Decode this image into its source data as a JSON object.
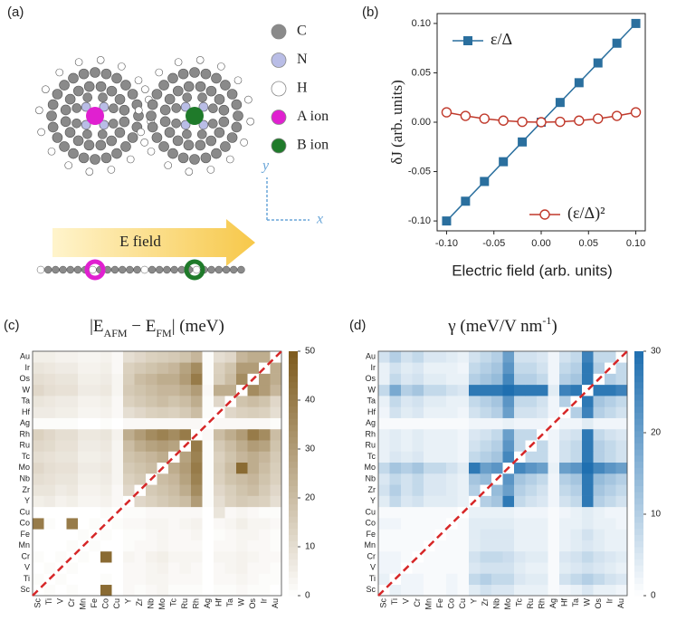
{
  "panel_a": {
    "label": "(a)",
    "legend": [
      "C",
      "N",
      "H",
      "A ion",
      "B ion"
    ],
    "field_label": "E field",
    "axis_y": "y",
    "axis_x": "x"
  },
  "chart_data": [
    {
      "type": "line",
      "label": "(b)",
      "x_label": "Electric field (arb. units)",
      "y_label": "δJ (arb. units)",
      "x": [
        -0.1,
        -0.08,
        -0.06,
        -0.04,
        -0.02,
        0,
        0.02,
        0.04,
        0.06,
        0.08,
        0.1
      ],
      "series": [
        {
          "name": "ε/Δ",
          "color": "#2a6f9e",
          "values": [
            -0.1,
            -0.08,
            -0.06,
            -0.04,
            -0.02,
            0,
            0.02,
            0.04,
            0.06,
            0.08,
            0.1
          ]
        },
        {
          "name": "(ε/Δ)²",
          "color": "#c0392b",
          "values": [
            0.01,
            0.0064,
            0.0036,
            0.0016,
            0.0004,
            0,
            0.0004,
            0.0016,
            0.0036,
            0.0064,
            0.01
          ]
        }
      ],
      "xlim": [
        -0.11,
        0.11
      ],
      "ylim": [
        -0.11,
        0.11
      ],
      "xticks": [
        {
          "value": -0.1,
          "label": "-0.10"
        },
        {
          "value": -0.05,
          "label": "-0.05"
        },
        {
          "value": 0,
          "label": "0.00"
        },
        {
          "value": 0.05,
          "label": "0.05"
        },
        {
          "value": 0.1,
          "label": "0.10"
        }
      ],
      "yticks": [
        {
          "value": -0.1,
          "label": "-0.10"
        },
        {
          "value": -0.05,
          "label": "-0.05"
        },
        {
          "value": 0,
          "label": "0.00"
        },
        {
          "value": 0.05,
          "label": "0.05"
        },
        {
          "value": 0.1,
          "label": "0.10"
        }
      ]
    },
    {
      "type": "heatmap",
      "label": "(c)",
      "title_parts": [
        "|E",
        "AFM",
        " − E",
        "FM",
        "|   (meV)"
      ],
      "categories": [
        "Sc",
        "Ti",
        "V",
        "Cr",
        "Mn",
        "Fe",
        "Co",
        "Cu",
        "Y",
        "Zr",
        "Nb",
        "Mo",
        "Tc",
        "Ru",
        "Rh",
        "Ag",
        "Hf",
        "Ta",
        "W",
        "Os",
        "Ir",
        "Au"
      ],
      "cmap": [
        "#ffffff",
        "#7d5a1c"
      ],
      "zlim": [
        0,
        50
      ],
      "zticks": [
        0,
        10,
        20,
        30,
        40,
        50
      ],
      "z": [
        [
          0,
          1,
          0,
          1,
          0,
          0,
          45,
          0,
          2,
          1,
          2,
          3,
          1,
          1,
          1,
          0,
          1,
          1,
          2,
          1,
          1,
          0
        ],
        [
          1,
          0,
          1,
          0,
          0,
          0,
          1,
          0,
          2,
          2,
          3,
          3,
          2,
          2,
          2,
          0,
          2,
          2,
          3,
          2,
          1,
          1
        ],
        [
          0,
          1,
          0,
          1,
          0,
          0,
          0,
          0,
          2,
          2,
          3,
          4,
          2,
          3,
          2,
          0,
          2,
          3,
          4,
          2,
          2,
          1
        ],
        [
          1,
          0,
          1,
          0,
          1,
          0,
          45,
          0,
          3,
          2,
          4,
          5,
          3,
          3,
          3,
          0,
          3,
          3,
          4,
          3,
          2,
          2
        ],
        [
          0,
          0,
          0,
          1,
          0,
          1,
          0,
          0,
          1,
          2,
          2,
          3,
          2,
          2,
          2,
          0,
          2,
          2,
          3,
          2,
          2,
          1
        ],
        [
          0,
          0,
          0,
          0,
          1,
          0,
          1,
          0,
          1,
          1,
          2,
          3,
          2,
          2,
          3,
          0,
          1,
          2,
          3,
          3,
          2,
          1
        ],
        [
          40,
          1,
          0,
          40,
          0,
          1,
          0,
          1,
          2,
          2,
          3,
          3,
          2,
          3,
          4,
          0,
          2,
          3,
          5,
          3,
          3,
          2
        ],
        [
          0,
          0,
          0,
          0,
          0,
          0,
          1,
          0,
          1,
          1,
          2,
          2,
          2,
          2,
          2,
          0,
          8,
          2,
          3,
          2,
          1,
          1
        ],
        [
          5,
          6,
          4,
          5,
          3,
          3,
          4,
          2,
          0,
          12,
          14,
          16,
          18,
          20,
          30,
          1,
          10,
          14,
          16,
          15,
          14,
          10
        ],
        [
          8,
          8,
          6,
          7,
          4,
          4,
          5,
          2,
          12,
          0,
          16,
          18,
          20,
          25,
          35,
          1,
          12,
          15,
          18,
          20,
          16,
          12
        ],
        [
          10,
          9,
          8,
          8,
          5,
          5,
          6,
          3,
          14,
          16,
          0,
          20,
          22,
          28,
          38,
          1,
          14,
          18,
          20,
          22,
          18,
          14
        ],
        [
          12,
          10,
          9,
          9,
          6,
          6,
          7,
          3,
          16,
          18,
          20,
          0,
          25,
          30,
          40,
          1,
          15,
          20,
          45,
          25,
          20,
          15
        ],
        [
          10,
          9,
          8,
          8,
          5,
          5,
          6,
          3,
          18,
          20,
          22,
          25,
          0,
          28,
          38,
          1,
          14,
          18,
          22,
          25,
          22,
          16
        ],
        [
          12,
          11,
          9,
          9,
          6,
          6,
          7,
          3,
          20,
          25,
          28,
          30,
          28,
          0,
          40,
          1,
          16,
          20,
          25,
          30,
          28,
          18
        ],
        [
          14,
          12,
          10,
          10,
          7,
          7,
          8,
          4,
          25,
          30,
          35,
          38,
          35,
          40,
          0,
          2,
          20,
          25,
          30,
          40,
          35,
          20
        ],
        [
          1,
          1,
          1,
          1,
          0,
          0,
          1,
          0,
          2,
          2,
          2,
          2,
          2,
          2,
          2,
          0,
          2,
          2,
          2,
          2,
          2,
          1
        ],
        [
          6,
          6,
          5,
          5,
          3,
          3,
          4,
          2,
          10,
          12,
          14,
          15,
          14,
          16,
          20,
          1,
          0,
          12,
          14,
          15,
          14,
          10
        ],
        [
          8,
          7,
          6,
          6,
          4,
          4,
          5,
          2,
          14,
          16,
          18,
          20,
          18,
          20,
          25,
          1,
          12,
          0,
          18,
          20,
          18,
          12
        ],
        [
          12,
          10,
          9,
          9,
          6,
          6,
          7,
          3,
          16,
          18,
          20,
          22,
          22,
          25,
          30,
          2,
          25,
          25,
          0,
          35,
          30,
          22
        ],
        [
          10,
          9,
          8,
          8,
          5,
          5,
          6,
          3,
          15,
          20,
          22,
          25,
          25,
          30,
          40,
          1,
          15,
          20,
          35,
          0,
          30,
          25
        ],
        [
          8,
          7,
          6,
          6,
          4,
          4,
          5,
          2,
          14,
          16,
          18,
          20,
          22,
          28,
          35,
          1,
          14,
          18,
          30,
          30,
          0,
          25
        ],
        [
          5,
          5,
          4,
          4,
          3,
          3,
          4,
          2,
          10,
          12,
          14,
          15,
          16,
          18,
          22,
          1,
          10,
          12,
          22,
          25,
          25,
          0
        ]
      ]
    },
    {
      "type": "heatmap",
      "label": "(d)",
      "title_parts": [
        "γ  (meV/V nm",
        "-1",
        ")"
      ],
      "categories": [
        "Sc",
        "Ti",
        "V",
        "Cr",
        "Mn",
        "Fe",
        "Co",
        "Cu",
        "Y",
        "Zr",
        "Nb",
        "Mo",
        "Tc",
        "Ru",
        "Rh",
        "Ag",
        "Hf",
        "Ta",
        "W",
        "Os",
        "Ir",
        "Au"
      ],
      "cmap": [
        "#ffffff",
        "#1f6fb0"
      ],
      "zlim": [
        0,
        30
      ],
      "zticks": [
        0,
        10,
        20,
        30
      ],
      "z": [
        [
          0,
          3,
          2,
          2,
          1,
          1,
          2,
          1,
          4,
          6,
          5,
          5,
          3,
          3,
          3,
          1,
          2,
          3,
          5,
          3,
          3,
          2
        ],
        [
          3,
          0,
          2,
          2,
          1,
          1,
          2,
          1,
          8,
          10,
          8,
          8,
          5,
          4,
          4,
          1,
          6,
          8,
          10,
          8,
          6,
          5
        ],
        [
          2,
          2,
          0,
          1,
          1,
          1,
          1,
          1,
          5,
          6,
          6,
          6,
          4,
          3,
          3,
          1,
          4,
          5,
          6,
          5,
          4,
          3
        ],
        [
          2,
          2,
          1,
          0,
          1,
          1,
          1,
          1,
          6,
          8,
          8,
          7,
          5,
          4,
          4,
          1,
          5,
          6,
          8,
          6,
          5,
          4
        ],
        [
          1,
          1,
          1,
          1,
          0,
          1,
          1,
          1,
          4,
          5,
          5,
          5,
          3,
          3,
          3,
          1,
          3,
          4,
          5,
          4,
          3,
          3
        ],
        [
          1,
          1,
          1,
          1,
          1,
          0,
          1,
          1,
          4,
          5,
          5,
          5,
          3,
          3,
          3,
          1,
          3,
          4,
          6,
          4,
          3,
          3
        ],
        [
          2,
          2,
          1,
          1,
          1,
          1,
          0,
          1,
          4,
          4,
          4,
          4,
          3,
          3,
          3,
          1,
          3,
          3,
          4,
          3,
          3,
          2
        ],
        [
          1,
          1,
          1,
          1,
          1,
          1,
          1,
          0,
          3,
          3,
          3,
          3,
          2,
          2,
          2,
          1,
          2,
          3,
          4,
          3,
          2,
          2
        ],
        [
          4,
          8,
          5,
          6,
          4,
          4,
          4,
          3,
          0,
          10,
          12,
          28,
          8,
          6,
          5,
          2,
          6,
          8,
          28,
          10,
          8,
          6
        ],
        [
          6,
          10,
          6,
          8,
          5,
          5,
          4,
          3,
          10,
          0,
          14,
          20,
          10,
          8,
          6,
          2,
          8,
          10,
          28,
          12,
          10,
          8
        ],
        [
          5,
          8,
          6,
          8,
          5,
          5,
          4,
          3,
          12,
          14,
          0,
          22,
          12,
          10,
          8,
          2,
          10,
          12,
          28,
          14,
          12,
          10
        ],
        [
          8,
          12,
          10,
          12,
          8,
          8,
          6,
          4,
          28,
          20,
          22,
          0,
          25,
          22,
          20,
          3,
          20,
          22,
          30,
          25,
          22,
          20
        ],
        [
          3,
          5,
          4,
          5,
          3,
          3,
          3,
          2,
          8,
          10,
          12,
          25,
          0,
          8,
          8,
          2,
          6,
          8,
          28,
          10,
          8,
          6
        ],
        [
          3,
          4,
          3,
          4,
          3,
          3,
          3,
          2,
          6,
          8,
          10,
          22,
          8,
          0,
          8,
          2,
          6,
          8,
          28,
          10,
          8,
          6
        ],
        [
          3,
          4,
          3,
          4,
          3,
          3,
          3,
          2,
          5,
          6,
          8,
          20,
          8,
          8,
          0,
          2,
          5,
          6,
          28,
          8,
          6,
          5
        ],
        [
          1,
          1,
          1,
          1,
          1,
          1,
          1,
          1,
          2,
          2,
          2,
          3,
          2,
          2,
          2,
          0,
          2,
          2,
          4,
          2,
          2,
          2
        ],
        [
          2,
          6,
          4,
          5,
          3,
          3,
          3,
          2,
          6,
          8,
          10,
          20,
          6,
          6,
          5,
          2,
          0,
          10,
          26,
          10,
          8,
          6
        ],
        [
          3,
          8,
          5,
          6,
          4,
          4,
          3,
          3,
          8,
          10,
          12,
          22,
          8,
          8,
          6,
          2,
          10,
          0,
          28,
          12,
          10,
          8
        ],
        [
          8,
          18,
          10,
          12,
          8,
          8,
          6,
          5,
          28,
          28,
          28,
          30,
          28,
          28,
          28,
          4,
          26,
          28,
          0,
          28,
          28,
          26
        ],
        [
          3,
          8,
          5,
          6,
          4,
          4,
          3,
          3,
          10,
          12,
          14,
          25,
          10,
          10,
          8,
          2,
          10,
          12,
          28,
          0,
          10,
          8
        ],
        [
          3,
          6,
          4,
          5,
          3,
          3,
          3,
          2,
          8,
          10,
          12,
          22,
          8,
          8,
          6,
          2,
          8,
          10,
          28,
          10,
          0,
          8
        ],
        [
          6,
          10,
          6,
          8,
          5,
          5,
          4,
          3,
          6,
          8,
          10,
          20,
          6,
          6,
          5,
          2,
          6,
          8,
          26,
          8,
          8,
          0
        ]
      ]
    }
  ]
}
